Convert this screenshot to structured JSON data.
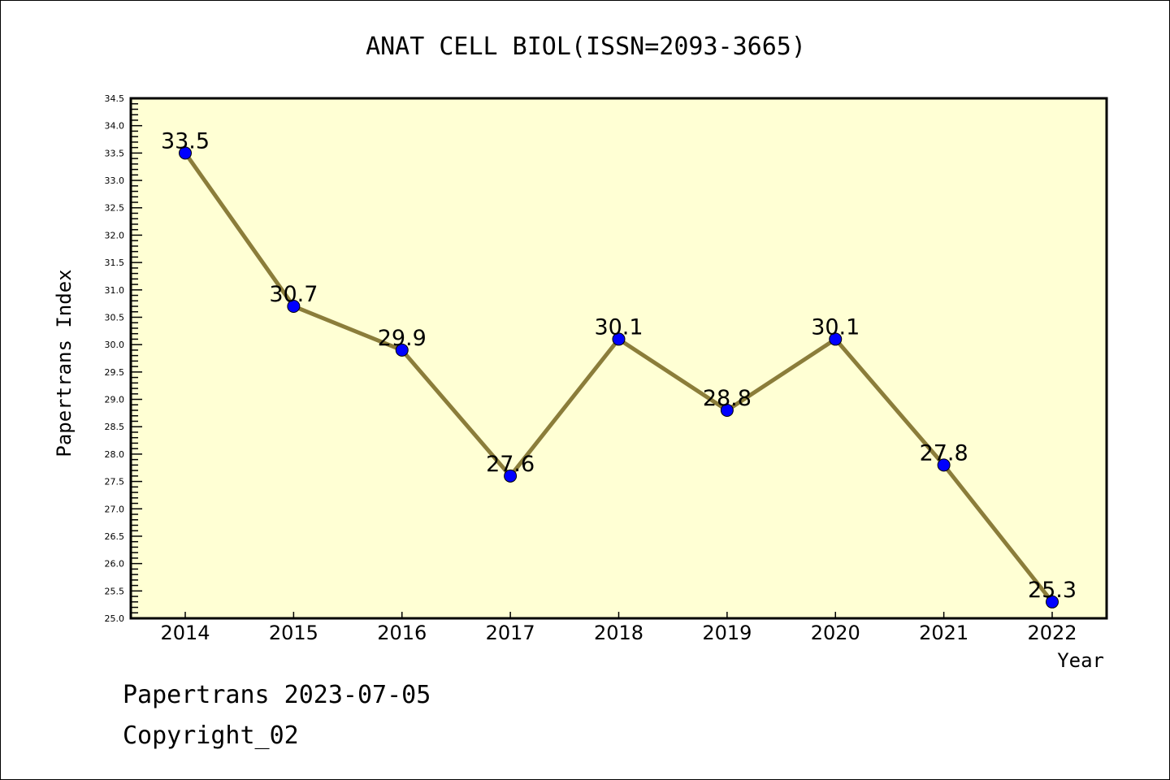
{
  "chart_data": {
    "type": "line",
    "title": "ANAT CELL BIOL(ISSN=2093-3665)",
    "xlabel": "Year",
    "ylabel": "Papertrans Index",
    "categories": [
      "2014",
      "2015",
      "2016",
      "2017",
      "2018",
      "2019",
      "2020",
      "2021",
      "2022"
    ],
    "series": [
      {
        "name": "Papertrans Index",
        "values": [
          33.5,
          30.7,
          29.9,
          27.6,
          30.1,
          28.8,
          30.1,
          27.8,
          25.3
        ]
      }
    ],
    "data_labels": [
      "33.5",
      "30.7",
      "29.9",
      "27.6",
      "30.1",
      "28.8",
      "30.1",
      "27.8",
      "25.3"
    ],
    "ylim": [
      25.0,
      34.5
    ],
    "yticks": [
      "25.0",
      "25.5",
      "26.0",
      "26.5",
      "27.0",
      "27.5",
      "28.0",
      "28.5",
      "29.0",
      "29.5",
      "30.0",
      "30.5",
      "31.0",
      "31.5",
      "32.0",
      "32.5",
      "33.0",
      "33.5",
      "34.0",
      "34.5"
    ],
    "grid": false,
    "colors": {
      "plot_bg": "#ffffd4",
      "line": "#8b7d3a",
      "marker": "#0000ff"
    }
  },
  "footer": {
    "line1": "Papertrans 2023-07-05",
    "line2": "Copyright_02"
  }
}
